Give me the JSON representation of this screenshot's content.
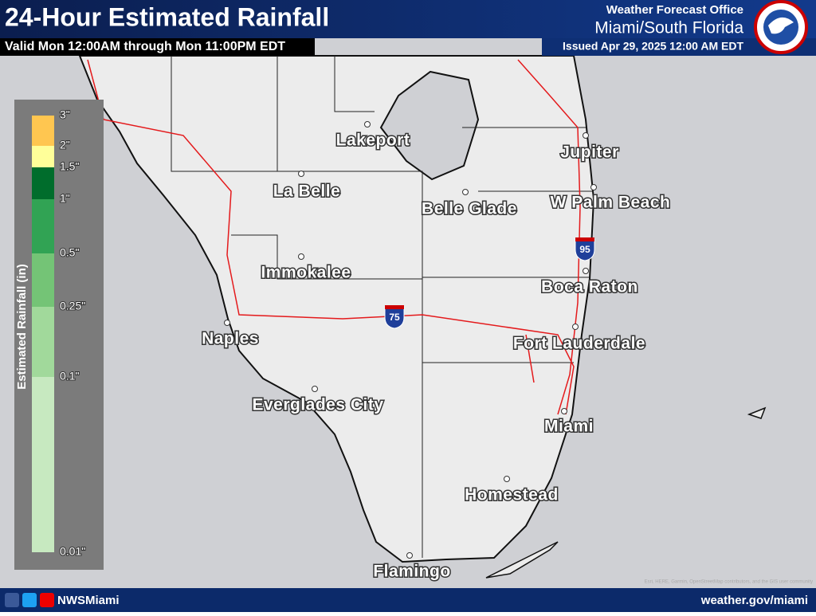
{
  "header": {
    "title": "24-Hour Estimated Rainfall",
    "valid": "Valid Mon 12:00AM through Mon 11:00PM EDT",
    "office": "Weather Forecast Office",
    "office_name": "Miami/South Florida",
    "issued": "Issued Apr 29, 2025 12:00 AM EDT"
  },
  "legend": {
    "title": "Estimated Rainfall (in)",
    "ticks": [
      "3\"",
      "2\"",
      "1.5\"",
      "1\"",
      "0.5\"",
      "0.25\"",
      "0.1\"",
      "0.01\""
    ],
    "colors": [
      "#ffc650",
      "#ffff99",
      "#006d2c",
      "#31a354",
      "#74c476",
      "#a1d99b",
      "#c7e9c0"
    ]
  },
  "cities": [
    "Lakeport",
    "La Belle",
    "Belle Glade",
    "Jupiter",
    "W Palm Beach",
    "Immokalee",
    "Boca Raton",
    "Naples",
    "Fort Lauderdale",
    "Everglades City",
    "Miami",
    "Homestead",
    "Flamingo"
  ],
  "highways": [
    "75",
    "95"
  ],
  "footer": {
    "social": "NWSMiami",
    "url": "weather.gov/miami",
    "attribution": "Esri, HERE, Garmin, OpenStreetMap contributors, and the GIS user community"
  }
}
